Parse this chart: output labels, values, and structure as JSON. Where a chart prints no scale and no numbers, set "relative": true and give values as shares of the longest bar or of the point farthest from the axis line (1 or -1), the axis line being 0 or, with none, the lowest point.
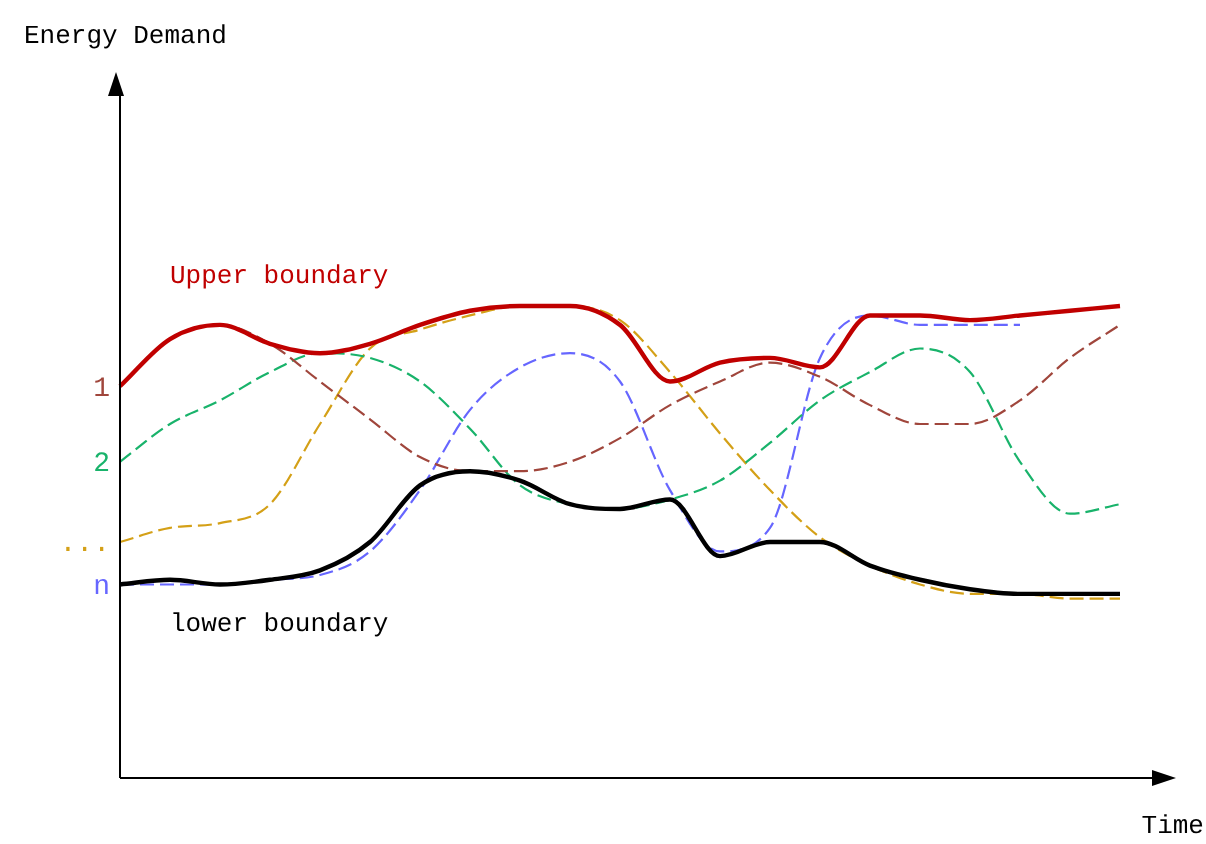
{
  "chart_data": {
    "type": "line",
    "relative": true,
    "xlabel": "Time",
    "annotations": [
      "Energy Demand"
    ],
    "legend": false,
    "grid": false,
    "marker": "none",
    "categories": [
      null,
      null,
      null,
      null,
      null,
      null,
      null,
      null,
      null,
      null,
      null,
      null,
      null,
      null,
      null,
      null,
      null,
      null,
      null,
      null,
      null
    ],
    "series": [
      {
        "name": "1",
        "color": "#a0463c",
        "line_style": "dashed",
        "values": [
          0.83,
          0.93,
          0.96,
          0.92,
          0.84,
          0.76,
          0.68,
          0.65,
          0.65,
          0.67,
          0.72,
          0.79,
          0.84,
          0.88,
          0.85,
          0.79,
          0.75,
          0.75,
          0.8,
          0.89,
          0.96
        ]
      },
      {
        "name": "2",
        "color": "#19b36b",
        "line_style": "dashed",
        "values": [
          0.67,
          0.75,
          0.8,
          0.86,
          0.9,
          0.89,
          0.84,
          0.74,
          0.62,
          0.58,
          0.57,
          0.59,
          0.63,
          0.71,
          0.8,
          0.86,
          0.91,
          0.86,
          0.67,
          0.56,
          0.58
        ]
      },
      {
        "name": "...",
        "color": "#d4a017",
        "line_style": "dashed",
        "values": [
          0.5,
          0.53,
          0.54,
          0.58,
          0.75,
          0.91,
          0.95,
          0.98,
          1.0,
          1.0,
          0.97,
          0.86,
          0.73,
          0.61,
          0.51,
          0.45,
          0.41,
          0.39,
          0.39,
          0.38,
          0.38
        ]
      },
      {
        "name": "n",
        "color": "#6666ff",
        "line_style": "dashed",
        "values": [
          0.41,
          0.41,
          0.41,
          0.42,
          0.43,
          0.48,
          0.61,
          0.78,
          0.87,
          0.9,
          0.84,
          0.61,
          0.48,
          0.53,
          0.89,
          0.98,
          0.96,
          0.96,
          0.96,
          null,
          null
        ]
      },
      {
        "name": "Upper boundary",
        "color": "#c00000",
        "line_style": "solid",
        "values": [
          0.83,
          0.93,
          0.96,
          0.92,
          0.9,
          0.92,
          0.96,
          0.99,
          1.0,
          1.0,
          0.96,
          0.84,
          0.88,
          0.89,
          0.87,
          0.98,
          0.98,
          0.97,
          0.98,
          0.99,
          1.0
        ]
      },
      {
        "name": "lower boundary",
        "color": "#000000",
        "line_style": "solid",
        "values": [
          0.41,
          0.42,
          0.41,
          0.42,
          0.44,
          0.5,
          0.62,
          0.65,
          0.63,
          0.58,
          0.57,
          0.59,
          0.47,
          0.5,
          0.5,
          0.45,
          0.42,
          0.4,
          0.39,
          0.39,
          0.39
        ]
      }
    ]
  }
}
